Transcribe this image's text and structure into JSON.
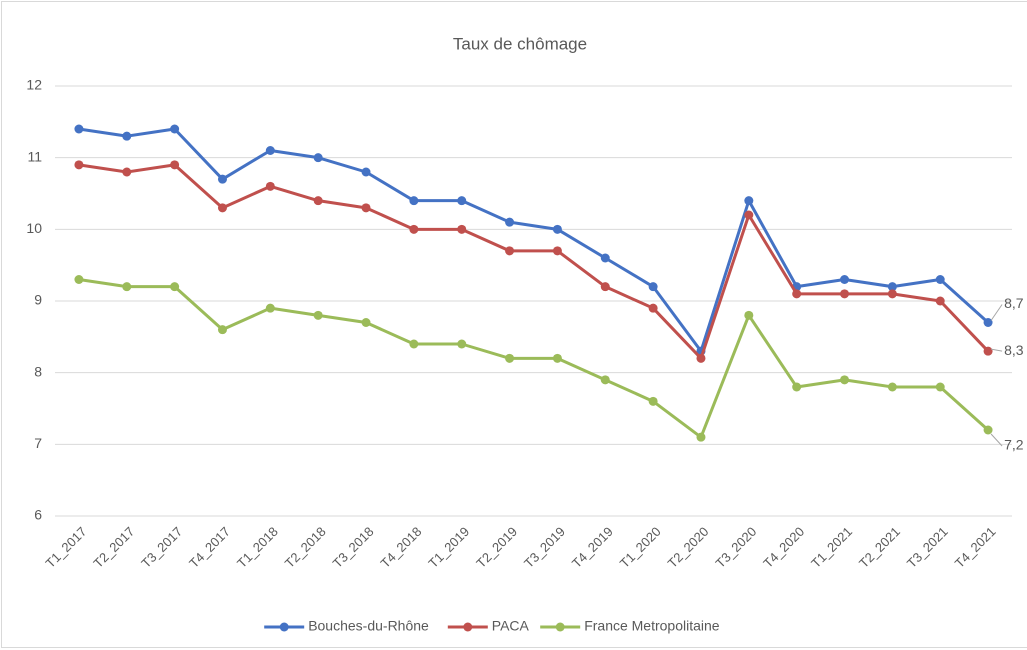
{
  "chart_data": {
    "type": "line",
    "title": "Taux de chômage",
    "categories": [
      "T1_2017",
      "T2_2017",
      "T3_2017",
      "T4_2017",
      "T1_2018",
      "T2_2018",
      "T3_2018",
      "T4_2018",
      "T1_2019",
      "T2_2019",
      "T3_2019",
      "T4_2019",
      "T1_2020",
      "T2_2020",
      "T3_2020",
      "T4_2020",
      "T1_2021",
      "T2_2021",
      "T3_2021",
      "T4_2021"
    ],
    "series": [
      {
        "name": "Bouches-du-Rhône",
        "color": "#4472c4",
        "values": [
          11.4,
          11.3,
          11.4,
          10.7,
          11.1,
          11.0,
          10.8,
          10.4,
          10.4,
          10.1,
          10.0,
          9.6,
          9.2,
          8.3,
          10.4,
          9.2,
          9.3,
          9.2,
          9.3,
          8.7
        ],
        "value_labels": [
          null,
          null,
          null,
          null,
          null,
          null,
          null,
          null,
          null,
          null,
          null,
          null,
          null,
          null,
          null,
          null,
          null,
          null,
          null,
          "8,7"
        ]
      },
      {
        "name": "PACA",
        "color": "#c0504d",
        "values": [
          10.9,
          10.8,
          10.9,
          10.3,
          10.6,
          10.4,
          10.3,
          10.0,
          10.0,
          9.7,
          9.7,
          9.2,
          8.9,
          8.2,
          10.2,
          9.1,
          9.1,
          9.1,
          9.0,
          8.3
        ],
        "value_labels": [
          null,
          null,
          null,
          null,
          null,
          null,
          null,
          null,
          null,
          null,
          null,
          null,
          null,
          null,
          null,
          null,
          null,
          null,
          null,
          "8,3"
        ]
      },
      {
        "name": "France Metropolitaine",
        "color": "#9bbb59",
        "values": [
          9.3,
          9.2,
          9.2,
          8.6,
          8.9,
          8.8,
          8.7,
          8.4,
          8.4,
          8.2,
          8.2,
          7.9,
          7.6,
          7.1,
          8.8,
          7.8,
          7.9,
          7.8,
          7.8,
          7.2
        ],
        "value_labels": [
          null,
          null,
          null,
          null,
          null,
          null,
          null,
          null,
          null,
          null,
          null,
          null,
          null,
          null,
          null,
          null,
          null,
          null,
          null,
          "7,2"
        ]
      }
    ],
    "ylim": [
      6,
      12
    ],
    "yticks": [
      6,
      7,
      8,
      9,
      10,
      11,
      12
    ],
    "grid": true,
    "legend": "bottom"
  }
}
